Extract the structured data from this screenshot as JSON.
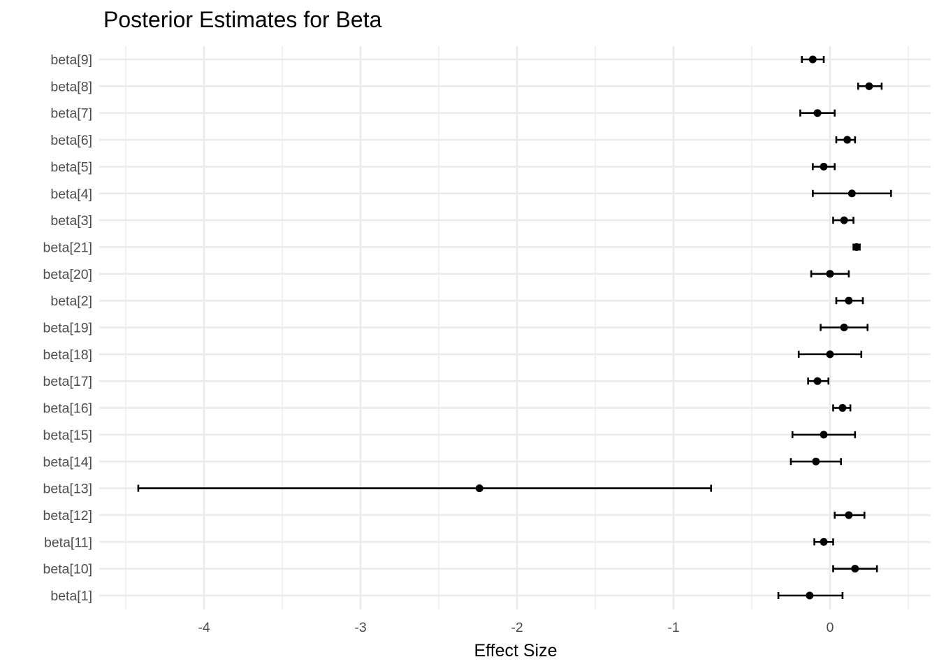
{
  "chart_data": {
    "type": "errorbar",
    "title": "Posterior Estimates for Beta",
    "xlabel": "Effect Size",
    "ylabel": "",
    "xlim": [
      -4.66,
      0.63
    ],
    "x_ticks": [
      -4,
      -3,
      -2,
      -1,
      0
    ],
    "x_tick_labels": [
      "-4",
      "-3",
      "-2",
      "-1",
      "0"
    ],
    "grid": true,
    "categories": [
      "beta[1]",
      "beta[10]",
      "beta[11]",
      "beta[12]",
      "beta[13]",
      "beta[14]",
      "beta[15]",
      "beta[16]",
      "beta[17]",
      "beta[18]",
      "beta[19]",
      "beta[2]",
      "beta[20]",
      "beta[21]",
      "beta[3]",
      "beta[4]",
      "beta[5]",
      "beta[6]",
      "beta[7]",
      "beta[8]",
      "beta[9]"
    ],
    "estimate": [
      -0.13,
      0.16,
      -0.04,
      0.12,
      -2.24,
      -0.09,
      -0.04,
      0.08,
      -0.08,
      0.0,
      0.09,
      0.12,
      0.0,
      0.17,
      0.09,
      0.14,
      -0.04,
      0.11,
      -0.08,
      0.25,
      -0.11
    ],
    "lower": [
      -0.33,
      0.02,
      -0.1,
      0.03,
      -4.42,
      -0.25,
      -0.24,
      0.02,
      -0.14,
      -0.2,
      -0.06,
      0.04,
      -0.12,
      0.15,
      0.02,
      -0.11,
      -0.11,
      0.04,
      -0.19,
      0.18,
      -0.18
    ],
    "upper": [
      0.08,
      0.3,
      0.02,
      0.22,
      -0.76,
      0.07,
      0.16,
      0.13,
      -0.01,
      0.2,
      0.24,
      0.21,
      0.12,
      0.19,
      0.15,
      0.39,
      0.03,
      0.16,
      0.03,
      0.33,
      -0.04
    ]
  }
}
